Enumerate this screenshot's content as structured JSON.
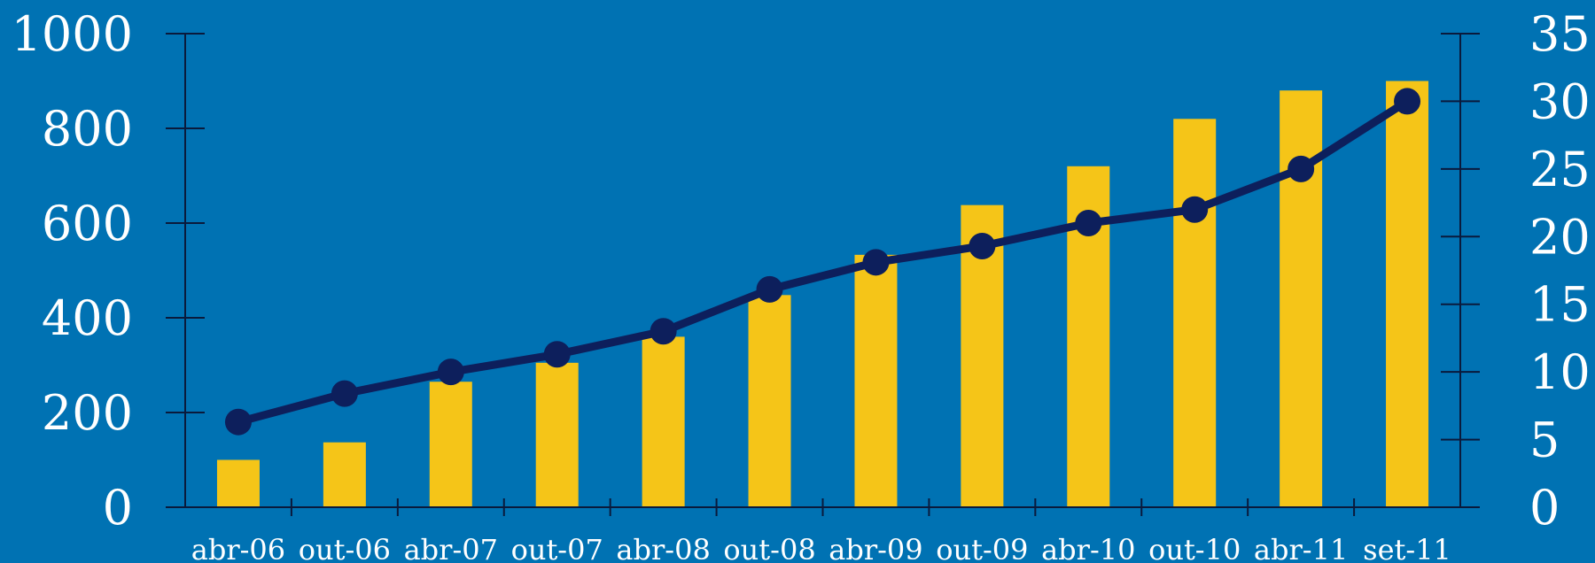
{
  "chart_data": {
    "type": "bar",
    "categories": [
      "abr-06",
      "out-06",
      "abr-07",
      "out-07",
      "abr-08",
      "out-08",
      "abr-09",
      "out-09",
      "abr-10",
      "out-10",
      "abr-11",
      "set-11"
    ],
    "series": [
      {
        "type": "bar",
        "axis": "left",
        "values": [
          100,
          137,
          265,
          305,
          360,
          448,
          533,
          638,
          720,
          820,
          880,
          900
        ]
      },
      {
        "type": "line",
        "axis": "right",
        "values": [
          6.3,
          8.4,
          10.0,
          11.3,
          13.0,
          16.1,
          18.1,
          19.3,
          21.0,
          22.0,
          25.0,
          30.0
        ]
      }
    ],
    "left_axis": {
      "ylim": [
        0,
        1000
      ],
      "ticks": [
        "0",
        "200",
        "400",
        "600",
        "800",
        "1000"
      ]
    },
    "right_axis": {
      "ylim": [
        0,
        35
      ],
      "ticks": [
        "0",
        "5",
        "10",
        "15",
        "20",
        "25",
        "30",
        "35"
      ]
    },
    "grid": false,
    "colors": {
      "background": "#0072b3",
      "bars": "#f5c518",
      "line": "#0d1f5c",
      "axes": "#0a1a3c",
      "text": "#ffffff"
    }
  }
}
